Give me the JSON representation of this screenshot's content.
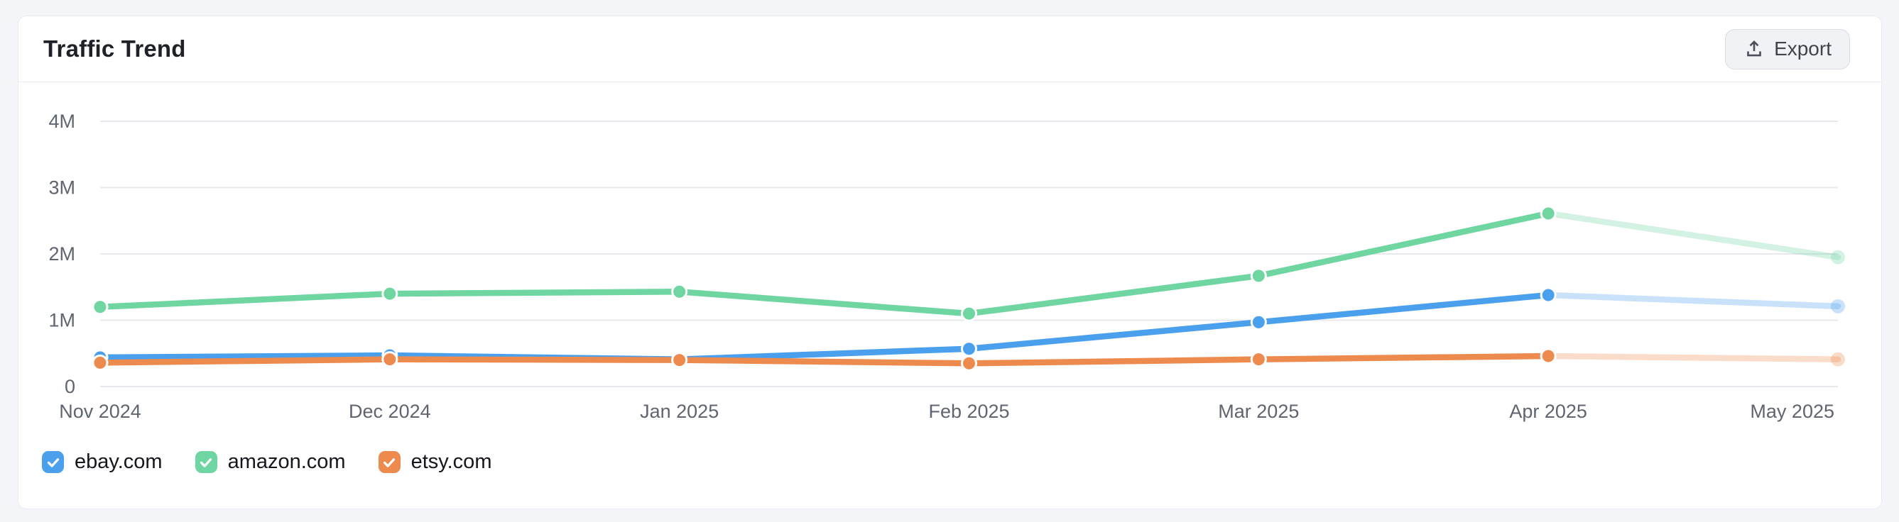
{
  "page": {
    "background": "#f4f5f9"
  },
  "header": {
    "title": "Traffic Trend",
    "export_button": {
      "label": "Export",
      "icon": "upload-icon"
    }
  },
  "chart_data": {
    "type": "line",
    "title": "Traffic Trend",
    "x": [
      "Nov 2024",
      "Dec 2024",
      "Jan 2025",
      "Feb 2025",
      "Mar 2025",
      "Apr 2025",
      "May 2025"
    ],
    "y_axis": {
      "ticks": [
        "0",
        "1M",
        "2M",
        "3M",
        "4M"
      ],
      "tick_values_millions": [
        0,
        1,
        2,
        3,
        4
      ],
      "ylim_millions": [
        0,
        4
      ]
    },
    "grid": true,
    "legend_position": "bottom",
    "last_month_faded": true,
    "series": [
      {
        "name": "ebay.com",
        "color": "#4ba0ee",
        "faded_color": "#c9e3f9",
        "values_millions": [
          0.44,
          0.47,
          0.41,
          0.57,
          0.97,
          1.38,
          1.21
        ]
      },
      {
        "name": "amazon.com",
        "color": "#6fd5a1",
        "faded_color": "#d8f0e3",
        "values_millions": [
          1.2,
          1.4,
          1.43,
          1.1,
          1.67,
          2.61,
          1.95
        ]
      },
      {
        "name": "etsy.com",
        "color": "#ed8b4f",
        "faded_color": "#f9dfcb",
        "values_millions": [
          0.36,
          0.41,
          0.4,
          0.35,
          0.41,
          0.46,
          0.41
        ]
      }
    ]
  },
  "legend": {
    "items": [
      {
        "label": "ebay.com",
        "checked": true,
        "color": "#4ba0ee"
      },
      {
        "label": "amazon.com",
        "checked": true,
        "color": "#6fd5a1"
      },
      {
        "label": "etsy.com",
        "checked": true,
        "color": "#ed8b4f"
      }
    ]
  }
}
